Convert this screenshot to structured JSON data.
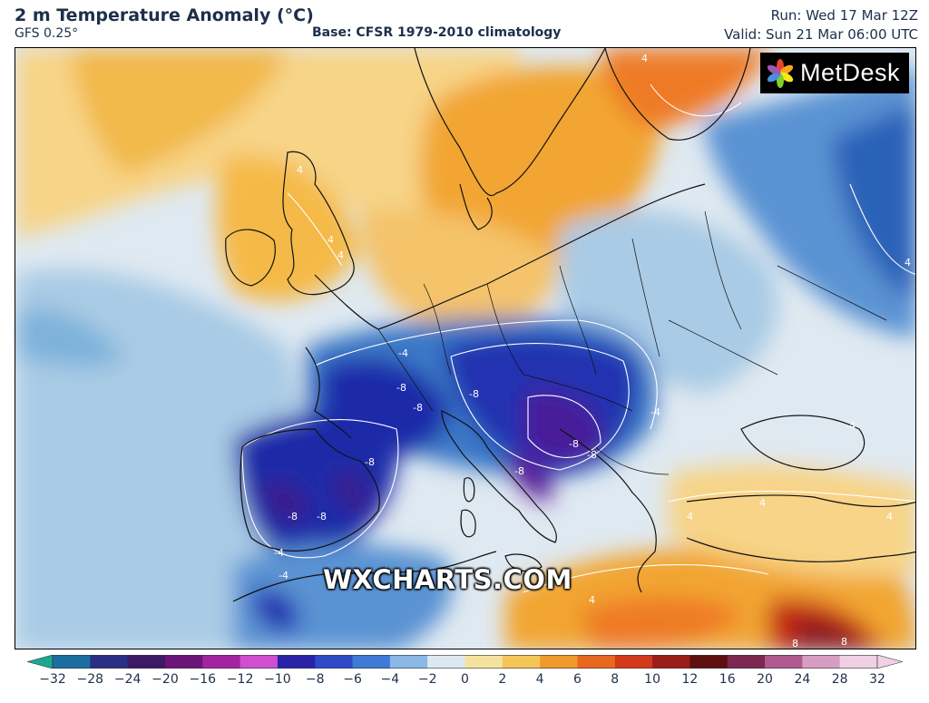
{
  "header": {
    "title": "2 m Temperature Anomaly (°C)",
    "model": "GFS 0.25°",
    "base": "Base: CFSR 1979-2010 climatology",
    "run": "Run: Wed 17 Mar 12Z",
    "valid": "Valid: Sun 21 Mar 06:00 UTC"
  },
  "logo": {
    "text": "MetDesk",
    "icon": "metdesk-flower-icon"
  },
  "watermark": "WXCHARTS.COM",
  "map": {
    "contour_labels": [
      "4",
      "4",
      "4",
      "-4",
      "-8",
      "-8",
      "-8",
      "-8",
      "-8",
      "-4",
      "-8",
      "-8",
      "-4",
      "-4",
      "4",
      "4",
      "4",
      "8",
      "8",
      "4",
      "-4",
      "-4",
      "-8",
      "-8",
      "4",
      "4"
    ],
    "colors": {
      "warm_orange": "#f2a531",
      "warm_yellow": "#f7d487",
      "neutral_light": "#dfe9f1",
      "light_blue": "#a9cbe5",
      "mid_blue": "#3a78c6",
      "deep_blue": "#1c2aa8",
      "violet": "#3a1a8c",
      "purple": "#6c1e8e",
      "red": "#d53a1c",
      "dark_red": "#8a1a1a",
      "coast": "#111111",
      "contour": "#ffffff"
    }
  },
  "colorbar": {
    "ticks": [
      "−32",
      "−28",
      "−24",
      "−20",
      "−16",
      "−12",
      "−10",
      "−8",
      "−6",
      "−4",
      "−2",
      "0",
      "2",
      "4",
      "6",
      "8",
      "10",
      "12",
      "16",
      "20",
      "24",
      "28",
      "32"
    ],
    "colors": [
      "#1aa88f",
      "#1b6e9e",
      "#2a2e84",
      "#3c1a66",
      "#6b1579",
      "#a224a0",
      "#d04fd0",
      "#2a23a8",
      "#2f49c8",
      "#3f7ad6",
      "#8bb8e6",
      "#dce9f3",
      "#f6e2a0",
      "#f5c55a",
      "#ef9a2b",
      "#e86820",
      "#d33a1a",
      "#9c1e1a",
      "#5e1010",
      "#7d2850",
      "#b05a8f",
      "#d79ec3",
      "#f0d0e4"
    ]
  }
}
